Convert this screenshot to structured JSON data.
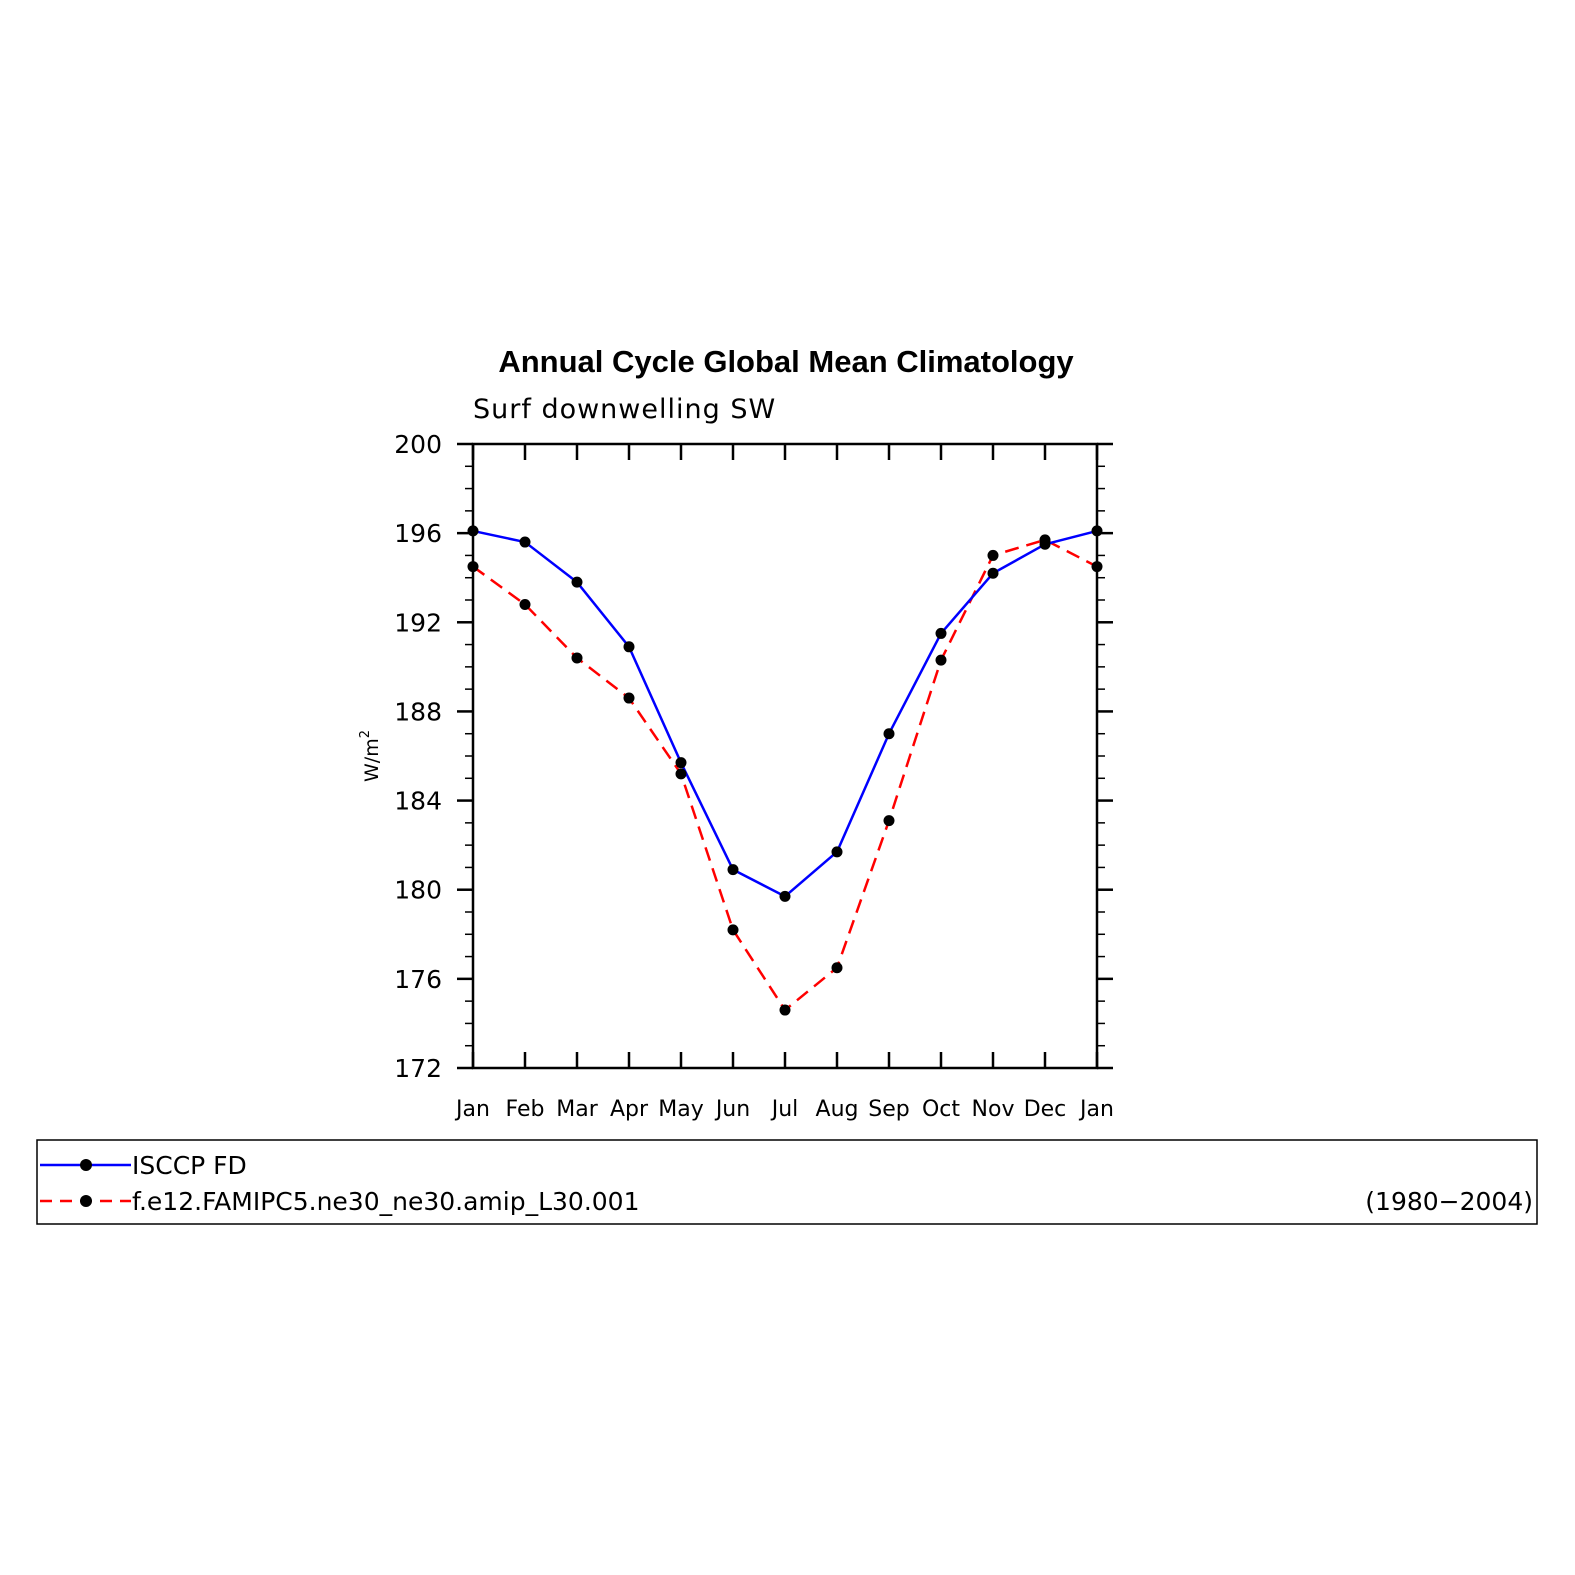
{
  "chart_data": {
    "type": "line",
    "title": "Annual Cycle Global Mean Climatology",
    "subtitle": "Surf downwelling SW",
    "ylabel": "W/m",
    "ylabel_superscript": "2",
    "xlabel": "",
    "categories": [
      "Jan",
      "Feb",
      "Mar",
      "Apr",
      "May",
      "Jun",
      "Jul",
      "Aug",
      "Sep",
      "Oct",
      "Nov",
      "Dec",
      "Jan"
    ],
    "ylim": [
      172,
      200
    ],
    "yticks": [
      172,
      176,
      180,
      184,
      188,
      192,
      196,
      200
    ],
    "grid": false,
    "legend_position": "bottom",
    "series": [
      {
        "name": "ISCCP FD",
        "color": "#0000ff",
        "dash": "solid",
        "marker": "filled-circle",
        "values": [
          196.1,
          195.6,
          193.8,
          190.9,
          185.7,
          180.9,
          179.7,
          181.7,
          187.0,
          191.5,
          194.2,
          195.5,
          196.1
        ]
      },
      {
        "name": "f.e12.FAMIPC5.ne30_ne30.amip_L30.001",
        "period": "(1980−2004)",
        "color": "#ff0000",
        "dash": "dashed",
        "marker": "filled-circle",
        "values": [
          194.5,
          192.8,
          190.4,
          188.6,
          185.2,
          178.2,
          174.6,
          176.5,
          183.1,
          190.3,
          195.0,
          195.7,
          194.5
        ]
      }
    ]
  }
}
